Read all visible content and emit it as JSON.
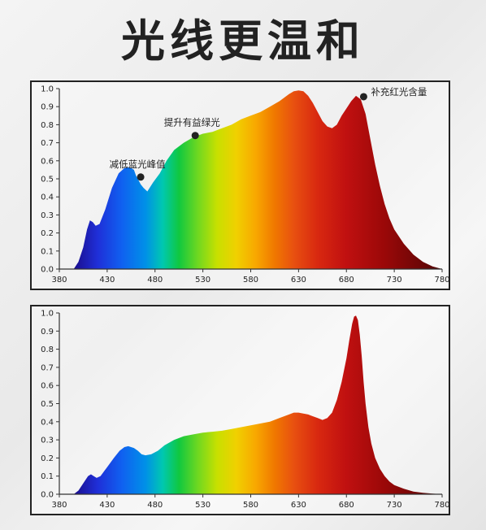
{
  "page_title": "光线更温和",
  "chart_data": [
    {
      "type": "area",
      "x_ticks": [
        380,
        430,
        480,
        530,
        580,
        630,
        680,
        730,
        780
      ],
      "y_ticks": [
        "0.0",
        "0.1",
        "0.2",
        "0.3",
        "0.4",
        "0.5",
        "0.6",
        "0.7",
        "0.8",
        "0.9",
        "1.0"
      ],
      "xlim": [
        380,
        780
      ],
      "ylim": [
        0,
        1.0
      ],
      "fill": "wavelength-spectrum-gradient",
      "x": [
        395,
        400,
        405,
        409,
        412,
        415,
        418,
        422,
        428,
        435,
        442,
        448,
        452,
        455,
        458,
        460,
        462,
        465,
        468,
        472,
        478,
        485,
        492,
        500,
        510,
        520,
        530,
        540,
        550,
        560,
        570,
        580,
        590,
        600,
        610,
        620,
        625,
        630,
        635,
        640,
        645,
        650,
        655,
        660,
        665,
        670,
        675,
        680,
        685,
        690,
        695,
        700,
        705,
        710,
        715,
        720,
        725,
        730,
        740,
        750,
        760,
        770,
        780
      ],
      "y": [
        0.0,
        0.04,
        0.12,
        0.22,
        0.27,
        0.26,
        0.24,
        0.25,
        0.33,
        0.45,
        0.53,
        0.56,
        0.565,
        0.56,
        0.55,
        0.52,
        0.5,
        0.47,
        0.45,
        0.43,
        0.48,
        0.53,
        0.6,
        0.66,
        0.7,
        0.73,
        0.75,
        0.76,
        0.78,
        0.8,
        0.83,
        0.85,
        0.87,
        0.9,
        0.93,
        0.97,
        0.985,
        0.99,
        0.985,
        0.96,
        0.92,
        0.87,
        0.82,
        0.79,
        0.78,
        0.8,
        0.85,
        0.89,
        0.93,
        0.96,
        0.94,
        0.86,
        0.72,
        0.58,
        0.46,
        0.36,
        0.28,
        0.22,
        0.14,
        0.08,
        0.04,
        0.015,
        0.0
      ],
      "annotations": [
        {
          "text": "减低蓝光峰值",
          "x": 465,
          "y": 0.51
        },
        {
          "text": "提升有益绿光",
          "x": 522,
          "y": 0.74
        },
        {
          "text": "补充红光含量",
          "x": 698,
          "y": 0.955
        }
      ]
    },
    {
      "type": "area",
      "x_ticks": [
        380,
        430,
        480,
        530,
        580,
        630,
        680,
        730,
        780
      ],
      "y_ticks": [
        "0.0",
        "0.1",
        "0.2",
        "0.3",
        "0.4",
        "0.5",
        "0.6",
        "0.7",
        "0.8",
        "0.9",
        "1.0"
      ],
      "xlim": [
        380,
        780
      ],
      "ylim": [
        0,
        1.0
      ],
      "fill": "wavelength-spectrum-gradient",
      "x": [
        395,
        400,
        405,
        410,
        413,
        416,
        419,
        423,
        430,
        437,
        443,
        448,
        452,
        455,
        458,
        462,
        466,
        470,
        476,
        483,
        490,
        500,
        510,
        520,
        530,
        540,
        550,
        560,
        570,
        580,
        590,
        600,
        610,
        620,
        625,
        630,
        635,
        640,
        645,
        650,
        655,
        660,
        665,
        670,
        675,
        680,
        683,
        686,
        688,
        690,
        692,
        694,
        696,
        698,
        700,
        703,
        706,
        710,
        715,
        720,
        725,
        730,
        740,
        750,
        760,
        770,
        780
      ],
      "y": [
        0.0,
        0.02,
        0.06,
        0.1,
        0.11,
        0.1,
        0.09,
        0.1,
        0.15,
        0.2,
        0.24,
        0.26,
        0.265,
        0.26,
        0.255,
        0.24,
        0.22,
        0.215,
        0.22,
        0.24,
        0.27,
        0.3,
        0.32,
        0.33,
        0.34,
        0.345,
        0.35,
        0.36,
        0.37,
        0.38,
        0.39,
        0.4,
        0.42,
        0.44,
        0.45,
        0.45,
        0.445,
        0.44,
        0.43,
        0.42,
        0.41,
        0.42,
        0.45,
        0.52,
        0.62,
        0.75,
        0.85,
        0.94,
        0.98,
        0.985,
        0.96,
        0.88,
        0.76,
        0.62,
        0.5,
        0.37,
        0.28,
        0.2,
        0.14,
        0.1,
        0.07,
        0.05,
        0.03,
        0.015,
        0.008,
        0.003,
        0.0
      ]
    }
  ]
}
